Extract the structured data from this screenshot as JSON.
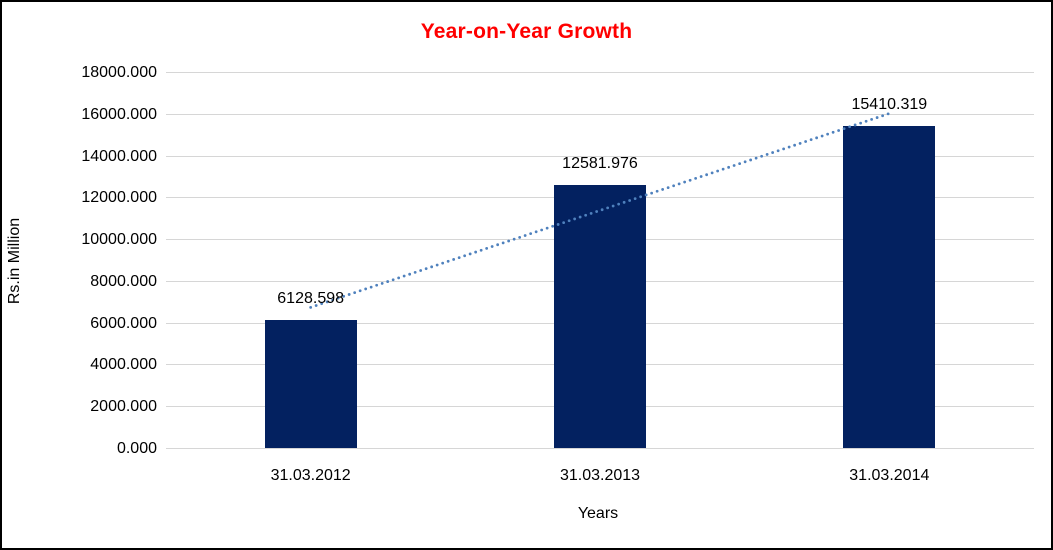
{
  "chart": {
    "title": "Year-on-Year Growth",
    "title_color": "#ff0000",
    "y_axis_title": "Rs.in Million",
    "x_axis_title": "Years",
    "bar_color": "#032160",
    "trendline_color": "#4f81bd",
    "gridline_color": "#d6d6d6",
    "text_color": "#000000",
    "background_color": "#ffffff"
  },
  "chart_data": {
    "type": "bar",
    "title": "Year-on-Year Growth",
    "categories": [
      "31.03.2012",
      "31.03.2013",
      "31.03.2014"
    ],
    "values": [
      6128.598,
      12581.976,
      15410.319
    ],
    "data_labels": [
      "6128.598",
      "12581.976",
      "15410.319"
    ],
    "xlabel": "Years",
    "ylabel": "Rs.in Million",
    "ylim": [
      0,
      18000
    ],
    "ytick_step": 2000,
    "ytick_labels": [
      "0.000",
      "2000.000",
      "4000.000",
      "6000.000",
      "8000.000",
      "10000.000",
      "12000.000",
      "14000.000",
      "16000.000",
      "18000.000"
    ],
    "grid": true,
    "legend": false,
    "trendline": "linear-dotted"
  }
}
